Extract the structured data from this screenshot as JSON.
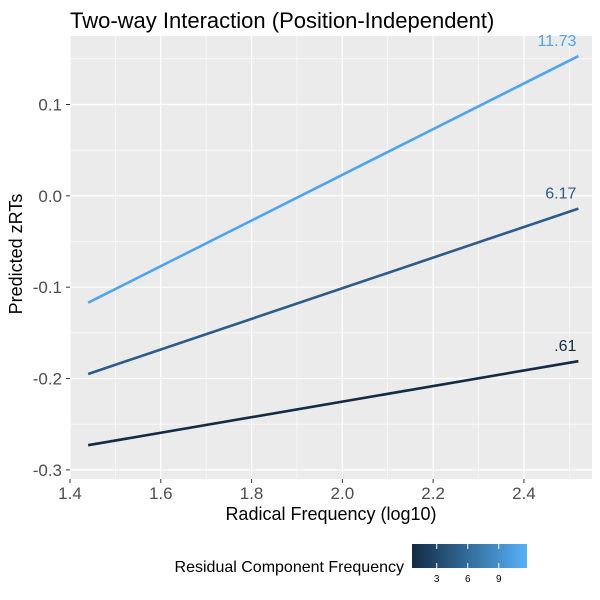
{
  "chart_data": {
    "type": "line",
    "title": "Two-way Interaction (Position-Independent)",
    "xlabel": "Radical Frequency (log10)",
    "ylabel": "Predicted zRTs",
    "xlim": [
      1.4,
      2.55
    ],
    "ylim": [
      -0.31,
      0.175
    ],
    "x_ticks": [
      1.4,
      1.6,
      1.8,
      2.0,
      2.2,
      2.4
    ],
    "x_tick_labels": [
      "1.4",
      "1.6",
      "1.8",
      "2.0",
      "2.2",
      "2.4"
    ],
    "y_ticks": [
      -0.3,
      -0.2,
      -0.1,
      0.0,
      0.1
    ],
    "y_tick_labels": [
      "-0.3",
      "-0.2",
      "-0.1",
      "0.0",
      "0.1"
    ],
    "grid": true,
    "series": [
      {
        "label": ".61",
        "color": "#132B43",
        "x": [
          1.44,
          2.52
        ],
        "values": [
          -0.273,
          -0.181
        ]
      },
      {
        "label": "6.17",
        "color": "#2D5C8A",
        "x": [
          1.44,
          2.52
        ],
        "values": [
          -0.195,
          -0.014
        ]
      },
      {
        "label": "11.73",
        "color": "#4EA4EE",
        "x": [
          1.44,
          2.52
        ],
        "values": [
          -0.117,
          0.153
        ]
      }
    ],
    "legend": {
      "title": "Residual Component Frequency",
      "position": "bottom",
      "ticks": [
        "3",
        "6",
        "9"
      ],
      "tick_values": [
        3,
        6,
        9
      ],
      "range": [
        0.61,
        11.73
      ],
      "color_low": "#132B43",
      "color_high": "#56B1F7"
    }
  }
}
